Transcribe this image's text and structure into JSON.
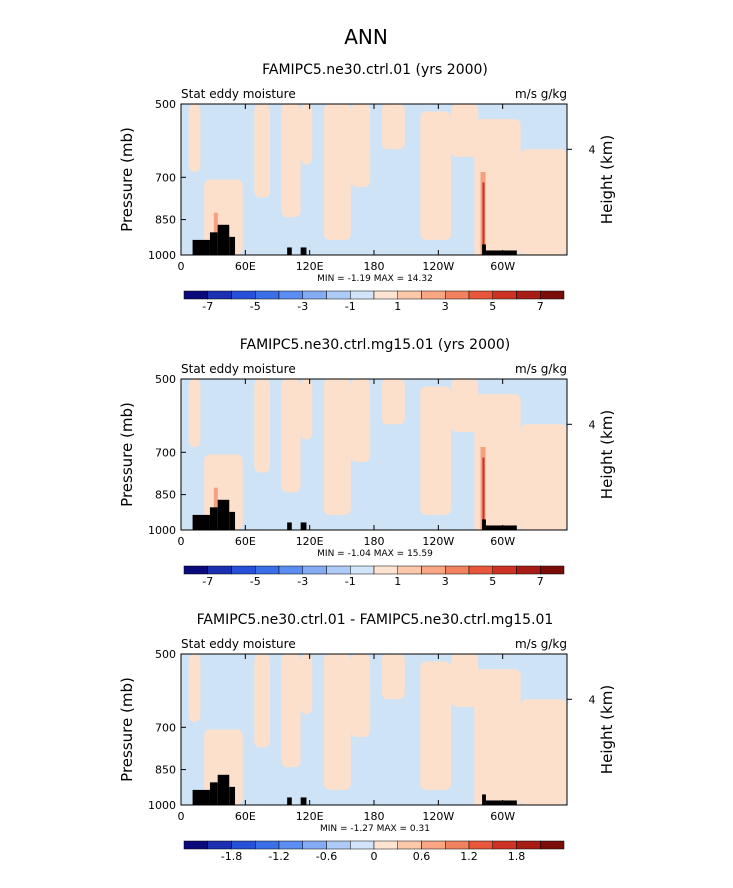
{
  "page_title": "ANN",
  "colors": {
    "light_blue": "#cfe3f7",
    "light_peach": "#fde0cc",
    "hotspot_red": "#c8302a",
    "hotspot_orange": "#f4a07e",
    "topo": "#000000"
  },
  "chart_data": [
    {
      "type": "heatmap",
      "title": "FAMIPC5.ne30.ctrl.01 (yrs 2000)",
      "left_label": "Stat eddy moisture",
      "right_label": "m/s g/kg",
      "ylabel": "Pressure (mb)",
      "y2label": "Height (km)",
      "xticks": [
        "0",
        "60E",
        "120E",
        "180",
        "120W",
        "60W"
      ],
      "yticks": [
        "500",
        "700",
        "850",
        "1000"
      ],
      "y2ticks": [
        "4"
      ],
      "stats": "MIN =  -1.19  MAX =  14.32",
      "colorbar": {
        "labels": [
          "-7",
          "-5",
          "-3",
          "-1",
          "1",
          "3",
          "5",
          "7"
        ],
        "colors": [
          "#0a0a7a",
          "#1b2fb0",
          "#2750d8",
          "#3a6fe8",
          "#5c8df0",
          "#85abf3",
          "#aecbf7",
          "#d2e4fa",
          "#fde3d2",
          "#fbc8aa",
          "#f8a684",
          "#f2825f",
          "#e8573c",
          "#cd3325",
          "#a81c16",
          "#7a0d0a"
        ]
      }
    },
    {
      "type": "heatmap",
      "title": "FAMIPC5.ne30.ctrl.mg15.01 (yrs 2000)",
      "left_label": "Stat eddy moisture",
      "right_label": "m/s g/kg",
      "ylabel": "Pressure (mb)",
      "y2label": "Height (km)",
      "xticks": [
        "0",
        "60E",
        "120E",
        "180",
        "120W",
        "60W"
      ],
      "yticks": [
        "500",
        "700",
        "850",
        "1000"
      ],
      "y2ticks": [
        "4"
      ],
      "stats": "MIN =  -1.04  MAX =  15.59",
      "colorbar": {
        "labels": [
          "-7",
          "-5",
          "-3",
          "-1",
          "1",
          "3",
          "5",
          "7"
        ],
        "colors": [
          "#0a0a7a",
          "#1b2fb0",
          "#2750d8",
          "#3a6fe8",
          "#5c8df0",
          "#85abf3",
          "#aecbf7",
          "#d2e4fa",
          "#fde3d2",
          "#fbc8aa",
          "#f8a684",
          "#f2825f",
          "#e8573c",
          "#cd3325",
          "#a81c16",
          "#7a0d0a"
        ]
      }
    },
    {
      "type": "heatmap",
      "title": "FAMIPC5.ne30.ctrl.01 - FAMIPC5.ne30.ctrl.mg15.01",
      "left_label": "Stat eddy moisture",
      "right_label": "m/s g/kg",
      "ylabel": "Pressure (mb)",
      "y2label": "Height (km)",
      "xticks": [
        "0",
        "60E",
        "120E",
        "180",
        "120W",
        "60W"
      ],
      "yticks": [
        "500",
        "700",
        "850",
        "1000"
      ],
      "y2ticks": [
        "4"
      ],
      "stats": "MIN =  -1.27  MAX =  0.31",
      "colorbar": {
        "labels": [
          "-1.8",
          "-1.2",
          "-0.6",
          "0",
          "0.6",
          "1.2",
          "1.8"
        ],
        "colors": [
          "#0a0a7a",
          "#1b2fb0",
          "#2750d8",
          "#3a6fe8",
          "#5c8df0",
          "#85abf3",
          "#aecbf7",
          "#d2e4fa",
          "#fde3d2",
          "#fbc8aa",
          "#f8a684",
          "#f2825f",
          "#e8573c",
          "#cd3325",
          "#a81c16",
          "#7a0d0a"
        ]
      }
    }
  ]
}
